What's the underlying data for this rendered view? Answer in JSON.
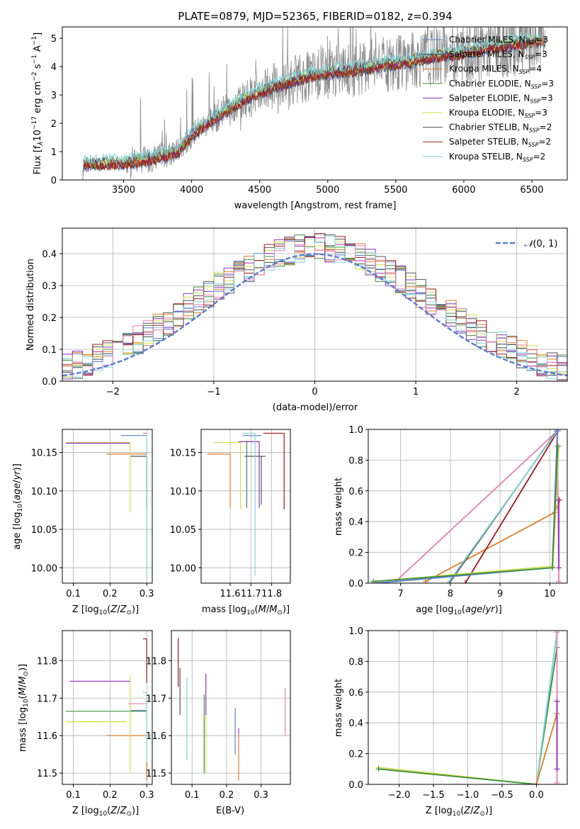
{
  "figure_title": "PLATE=0879, MJD=52365, FIBERID=0182, z=0.394",
  "colors": {
    "Chabrier MILES": "#5b7fd6",
    "Salpeter MILES": "#2f4f4f",
    "Kroupa MILES": "#e07b24",
    "Chabrier ELODIE": "#3c8f3c",
    "Salpeter ELODIE": "#9a2cc4",
    "Kroupa ELODIE": "#d2dd4c",
    "Chabrier STELIB": "#555555",
    "Salpeter STELIB": "#a01818",
    "Kroupa STELIB": "#7fd6d6",
    "gaussian": "#5b7fd6",
    "extra": "#e77fb0",
    "observed": "#888888"
  },
  "chart_data": [
    {
      "id": "spectrum",
      "type": "line",
      "title": "PLATE=0879, MJD=52365, FIBERID=0182, z=0.394",
      "xlabel": "wavelength [Angstrom, rest frame]",
      "ylabel": "Flux [f_λ 10^-17 erg cm^-2 s^-1 A^-1]",
      "xlim": [
        3050,
        6760
      ],
      "ylim": [
        0,
        5.4
      ],
      "xticks": [
        "3500",
        "4000",
        "4500",
        "5000",
        "5500",
        "6000",
        "6500"
      ],
      "yticks": [
        "0",
        "1",
        "2",
        "3",
        "4",
        "5"
      ],
      "grid": false,
      "legend_position": "right",
      "legend": [
        "Chabrier MILES, N_SSP=3",
        "Salpeter MILES, N_SSP=3",
        "Kroupa MILES, N_SSP=4",
        "Chabrier ELODIE, N_SSP=3",
        "Salpeter ELODIE, N_SSP=3",
        "Kroupa ELODIE, N_SSP=3",
        "Chabrier STELIB, N_SSP=2",
        "Salpeter STELIB, N_SSP=2",
        "Kroupa STELIB, N_SSP=2"
      ],
      "continuum": {
        "x": [
          3200,
          3300,
          3500,
          3700,
          3900,
          4000,
          4200,
          4400,
          4600,
          4800,
          5000,
          5200,
          5400,
          5600,
          5800,
          6000,
          6200,
          6400,
          6600
        ],
        "y": [
          0.55,
          0.6,
          0.62,
          0.75,
          1.0,
          1.6,
          2.3,
          2.9,
          3.3,
          3.6,
          3.8,
          3.9,
          4.05,
          4.2,
          4.4,
          4.5,
          4.7,
          4.85,
          4.95
        ]
      }
    },
    {
      "id": "residuals",
      "type": "line",
      "xlabel": "(data-model)/error",
      "ylabel": "Normed distribution",
      "xlim": [
        -2.5,
        2.5
      ],
      "ylim": [
        0,
        0.48
      ],
      "xticks": [
        "−2",
        "−1",
        "0",
        "1",
        "2"
      ],
      "yticks": [
        "0.0",
        "0.1",
        "0.2",
        "0.3",
        "0.4"
      ],
      "grid": true,
      "legend_position": "top-right",
      "legend": [
        "N(0, 1)"
      ]
    },
    {
      "id": "age-vs-Z",
      "type": "scatter",
      "xlabel": "Z [log10(Z/Z⊙)]",
      "ylabel": "age  [log10(age/yr)]",
      "xlim": [
        0.07,
        0.315
      ],
      "ylim": [
        9.98,
        10.18
      ],
      "xticks": [
        "0.1",
        "0.2",
        "0.3"
      ],
      "yticks": [
        "10.00",
        "10.05",
        "10.10",
        "10.15"
      ],
      "grid": true,
      "segments": [
        {
          "color": "Chabrier MILES",
          "x": [
            0.23,
            0.3
          ],
          "y": [
            10.172,
            10.172
          ]
        },
        {
          "color": "Kroupa MILES",
          "x": [
            0.19,
            0.3
          ],
          "y": [
            10.148,
            10.148
          ]
        },
        {
          "color": "Chabrier STELIB",
          "x": [
            0.255,
            0.3
          ],
          "y": [
            10.145,
            10.145
          ]
        },
        {
          "color": "Kroupa ELODIE",
          "x": [
            0.08,
            0.255
          ],
          "y": [
            10.163,
            10.163
          ]
        },
        {
          "color": "Salpeter ELODIE",
          "x": [
            0.08,
            0.255
          ],
          "y": [
            10.162,
            10.162
          ]
        },
        {
          "color": "Kroupa ELODIE",
          "x": [
            0.255,
            0.255
          ],
          "y": [
            10.072,
            10.163
          ]
        },
        {
          "color": "Chabrier STELIB",
          "x": [
            0.3,
            0.3
          ],
          "y": [
            10.076,
            10.145
          ]
        },
        {
          "color": "Kroupa STELIB",
          "x": [
            0.3,
            0.3
          ],
          "y": [
            9.99,
            10.175
          ]
        },
        {
          "color": "extra",
          "x": [
            0.29,
            0.3
          ],
          "y": [
            10.175,
            10.175
          ]
        }
      ]
    },
    {
      "id": "age-vs-mass",
      "type": "scatter",
      "xlabel": "mass [log10(M/M⊙)]",
      "ylabel": "",
      "xlim": [
        11.46,
        11.89
      ],
      "ylim": [
        9.98,
        10.18
      ],
      "xticks": [
        "11.6",
        "11.7",
        "11.8"
      ],
      "yticks": [
        "10.00",
        "10.05",
        "10.10",
        "10.15"
      ],
      "grid": true,
      "segments": [
        {
          "color": "Chabrier MILES",
          "x": [
            11.66,
            11.75
          ],
          "y": [
            10.172,
            10.172
          ]
        },
        {
          "color": "Kroupa MILES",
          "x": [
            11.49,
            11.6
          ],
          "y": [
            10.148,
            10.148
          ]
        },
        {
          "color": "Kroupa MILES",
          "x": [
            11.6,
            11.6
          ],
          "y": [
            10.078,
            10.148
          ]
        },
        {
          "color": "Salpeter STELIB",
          "x": [
            11.76,
            11.86
          ],
          "y": [
            10.175,
            10.175
          ]
        },
        {
          "color": "Salpeter STELIB",
          "x": [
            11.86,
            11.86
          ],
          "y": [
            10.076,
            10.175
          ]
        },
        {
          "color": "Chabrier STELIB",
          "x": [
            11.67,
            11.77
          ],
          "y": [
            10.145,
            10.145
          ]
        },
        {
          "color": "Salpeter ELODIE",
          "x": [
            11.64,
            11.74
          ],
          "y": [
            10.164,
            10.164
          ]
        },
        {
          "color": "Salpeter ELODIE",
          "x": [
            11.74,
            11.74
          ],
          "y": [
            10.078,
            10.164
          ]
        },
        {
          "color": "Chabrier STELIB",
          "x": [
            11.75,
            11.75
          ],
          "y": [
            10.082,
            10.145
          ]
        },
        {
          "color": "Kroupa ELODIE",
          "x": [
            11.52,
            11.65
          ],
          "y": [
            10.163,
            10.163
          ]
        },
        {
          "color": "Kroupa ELODIE",
          "x": [
            11.65,
            11.65
          ],
          "y": [
            10.076,
            10.163
          ]
        },
        {
          "color": "Chabrier ELODIE",
          "x": [
            11.68,
            11.68
          ],
          "y": [
            10.078,
            10.165
          ]
        },
        {
          "color": "Kroupa STELIB",
          "x": [
            11.66,
            11.72
          ],
          "y": [
            10.175,
            10.175
          ]
        },
        {
          "color": "Kroupa STELIB",
          "x": [
            11.72,
            11.72
          ],
          "y": [
            9.99,
            10.175
          ]
        }
      ]
    },
    {
      "id": "weight-vs-age",
      "type": "line",
      "xlabel": "age  [log10(age/yr)]",
      "ylabel": "mass weight",
      "xlim": [
        6.35,
        10.35
      ],
      "ylim": [
        0,
        1.0
      ],
      "xticks": [
        "7",
        "8",
        "9",
        "10"
      ],
      "yticks": [
        "0.0",
        "0.2",
        "0.4",
        "0.6",
        "0.8",
        "1.0"
      ],
      "grid": true,
      "series": [
        {
          "color": "extra",
          "x": [
            6.9,
            10.15,
            10.18
          ],
          "y": [
            0.01,
            0.99,
            0.01
          ]
        },
        {
          "color": "Kroupa MILES",
          "x": [
            7.5,
            10.1,
            10.2
          ],
          "y": [
            0.01,
            0.46,
            0.54
          ]
        },
        {
          "color": "Salpeter STELIB",
          "x": [
            8.3,
            10.16
          ],
          "y": [
            0.0,
            0.99
          ]
        },
        {
          "color": "Chabrier STELIB",
          "x": [
            7.98,
            10.14
          ],
          "y": [
            0.0,
            0.99
          ]
        },
        {
          "color": "Kroupa STELIB",
          "x": [
            7.95,
            10.15
          ],
          "y": [
            0.0,
            0.99
          ]
        },
        {
          "color": "Chabrier MILES",
          "x": [
            6.5,
            10.05,
            10.15
          ],
          "y": [
            0.0,
            0.1,
            0.99
          ]
        },
        {
          "color": "Kroupa ELODIE",
          "x": [
            6.45,
            10.06,
            10.18
          ],
          "y": [
            0.01,
            0.11,
            0.89
          ]
        },
        {
          "color": "Chabrier ELODIE",
          "x": [
            6.45,
            10.05,
            10.16
          ],
          "y": [
            0.01,
            0.1,
            0.89
          ]
        },
        {
          "color": "Salpeter ELODIE",
          "x": [
            10.18,
            10.18
          ],
          "y": [
            0.1,
            0.54
          ]
        }
      ]
    },
    {
      "id": "mass-vs-Z",
      "type": "scatter",
      "xlabel": "Z [log10(Z/Z⊙)]",
      "ylabel": "mass [log10(M/M⊙)]",
      "xlim": [
        0.07,
        0.315
      ],
      "ylim": [
        11.47,
        11.88
      ],
      "xticks": [
        "0.1",
        "0.2",
        "0.3"
      ],
      "yticks": [
        "11.5",
        "11.6",
        "11.7",
        "11.8"
      ],
      "grid": true,
      "segments": [
        {
          "color": "Salpeter STELIB",
          "x": [
            0.29,
            0.3
          ],
          "y": [
            11.858,
            11.858
          ]
        },
        {
          "color": "Salpeter STELIB",
          "x": [
            0.3,
            0.3
          ],
          "y": [
            11.74,
            11.858
          ]
        },
        {
          "color": "Salpeter ELODIE",
          "x": [
            0.09,
            0.255
          ],
          "y": [
            11.745,
            11.745
          ]
        },
        {
          "color": "Chabrier ELODIE",
          "x": [
            0.08,
            0.3
          ],
          "y": [
            11.665,
            11.665
          ]
        },
        {
          "color": "Chabrier MILES",
          "x": [
            0.255,
            0.3
          ],
          "y": [
            11.667,
            11.667
          ]
        },
        {
          "color": "Kroupa ELODIE",
          "x": [
            0.08,
            0.245
          ],
          "y": [
            11.637,
            11.637
          ]
        },
        {
          "color": "Kroupa MILES",
          "x": [
            0.19,
            0.3
          ],
          "y": [
            11.6,
            11.6
          ]
        },
        {
          "color": "Kroupa ELODIE",
          "x": [
            0.255,
            0.255
          ],
          "y": [
            11.5,
            11.76
          ]
        },
        {
          "color": "extra",
          "x": [
            0.25,
            0.3
          ],
          "y": [
            11.685,
            11.685
          ]
        },
        {
          "color": "Kroupa STELIB",
          "x": [
            0.29,
            0.3
          ],
          "y": [
            11.715,
            11.715
          ]
        },
        {
          "color": "Kroupa STELIB",
          "x": [
            0.3,
            0.3
          ],
          "y": [
            11.5,
            11.715
          ]
        },
        {
          "color": "Kroupa MILES",
          "x": [
            0.3,
            0.3
          ],
          "y": [
            11.48,
            11.53
          ]
        }
      ]
    },
    {
      "id": "mass-vs-EBV",
      "type": "scatter",
      "xlabel": "E(B-V)",
      "ylabel": "",
      "xlim": [
        0.04,
        0.385
      ],
      "ylim": [
        11.47,
        11.88
      ],
      "xticks": [
        "0.1",
        "0.2",
        "0.3"
      ],
      "yticks": [
        "11.5",
        "11.6",
        "11.7",
        "11.8"
      ],
      "grid": true,
      "segments": [
        {
          "color": "Salpeter STELIB",
          "x": [
            0.06,
            0.06
          ],
          "y": [
            11.73,
            11.86
          ]
        },
        {
          "color": "Chabrier STELIB",
          "x": [
            0.065,
            0.065
          ],
          "y": [
            11.655,
            11.78
          ]
        },
        {
          "color": "Kroupa STELIB",
          "x": [
            0.085,
            0.085
          ],
          "y": [
            11.535,
            11.755
          ]
        },
        {
          "color": "Chabrier ELODIE",
          "x": [
            0.135,
            0.135
          ],
          "y": [
            11.5,
            11.71
          ]
        },
        {
          "color": "Kroupa ELODIE",
          "x": [
            0.14,
            0.14
          ],
          "y": [
            11.5,
            11.66
          ]
        },
        {
          "color": "Salpeter ELODIE",
          "x": [
            0.14,
            0.14
          ],
          "y": [
            11.655,
            11.765
          ]
        },
        {
          "color": "Chabrier MILES",
          "x": [
            0.225,
            0.225
          ],
          "y": [
            11.55,
            11.673
          ]
        },
        {
          "color": "Kroupa MILES",
          "x": [
            0.235,
            0.235
          ],
          "y": [
            11.48,
            11.605
          ]
        },
        {
          "color": "Salpeter ELODIE",
          "x": [
            0.235,
            0.235
          ],
          "y": [
            11.605,
            11.62
          ]
        },
        {
          "color": "extra",
          "x": [
            0.37,
            0.37
          ],
          "y": [
            11.6,
            11.727
          ]
        }
      ]
    },
    {
      "id": "weight-vs-Z",
      "type": "line",
      "xlabel": "Z [log10(Z/Z⊙)]",
      "ylabel": "mass weight",
      "xlim": [
        -2.45,
        0.45
      ],
      "ylim": [
        0,
        1.0
      ],
      "xticks": [
        "−2.0",
        "−1.5",
        "−1.0",
        "−0.5",
        "0.0"
      ],
      "yticks": [
        "0.0",
        "0.2",
        "0.4",
        "0.6",
        "0.8",
        "1.0"
      ],
      "grid": true,
      "series": [
        {
          "color": "Kroupa ELODIE",
          "x": [
            -2.3,
            0.0,
            0.3
          ],
          "y": [
            0.11,
            0.0,
            0.89
          ]
        },
        {
          "color": "Chabrier ELODIE",
          "x": [
            -2.3,
            0.0,
            0.3
          ],
          "y": [
            0.1,
            0.0,
            0.89
          ]
        },
        {
          "color": "Chabrier MILES",
          "x": [
            0.0,
            0.3
          ],
          "y": [
            0.0,
            0.99
          ]
        },
        {
          "color": "Kroupa STELIB",
          "x": [
            0.0,
            0.3
          ],
          "y": [
            0.0,
            0.99
          ]
        },
        {
          "color": "Kroupa MILES",
          "x": [
            0.0,
            0.3,
            0.3
          ],
          "y": [
            0.0,
            0.46,
            0.54
          ]
        },
        {
          "color": "extra",
          "x": [
            0.3,
            0.3
          ],
          "y": [
            0.01,
            0.99
          ]
        },
        {
          "color": "Salpeter ELODIE",
          "x": [
            0.3,
            0.3
          ],
          "y": [
            0.1,
            0.54
          ]
        }
      ]
    }
  ]
}
